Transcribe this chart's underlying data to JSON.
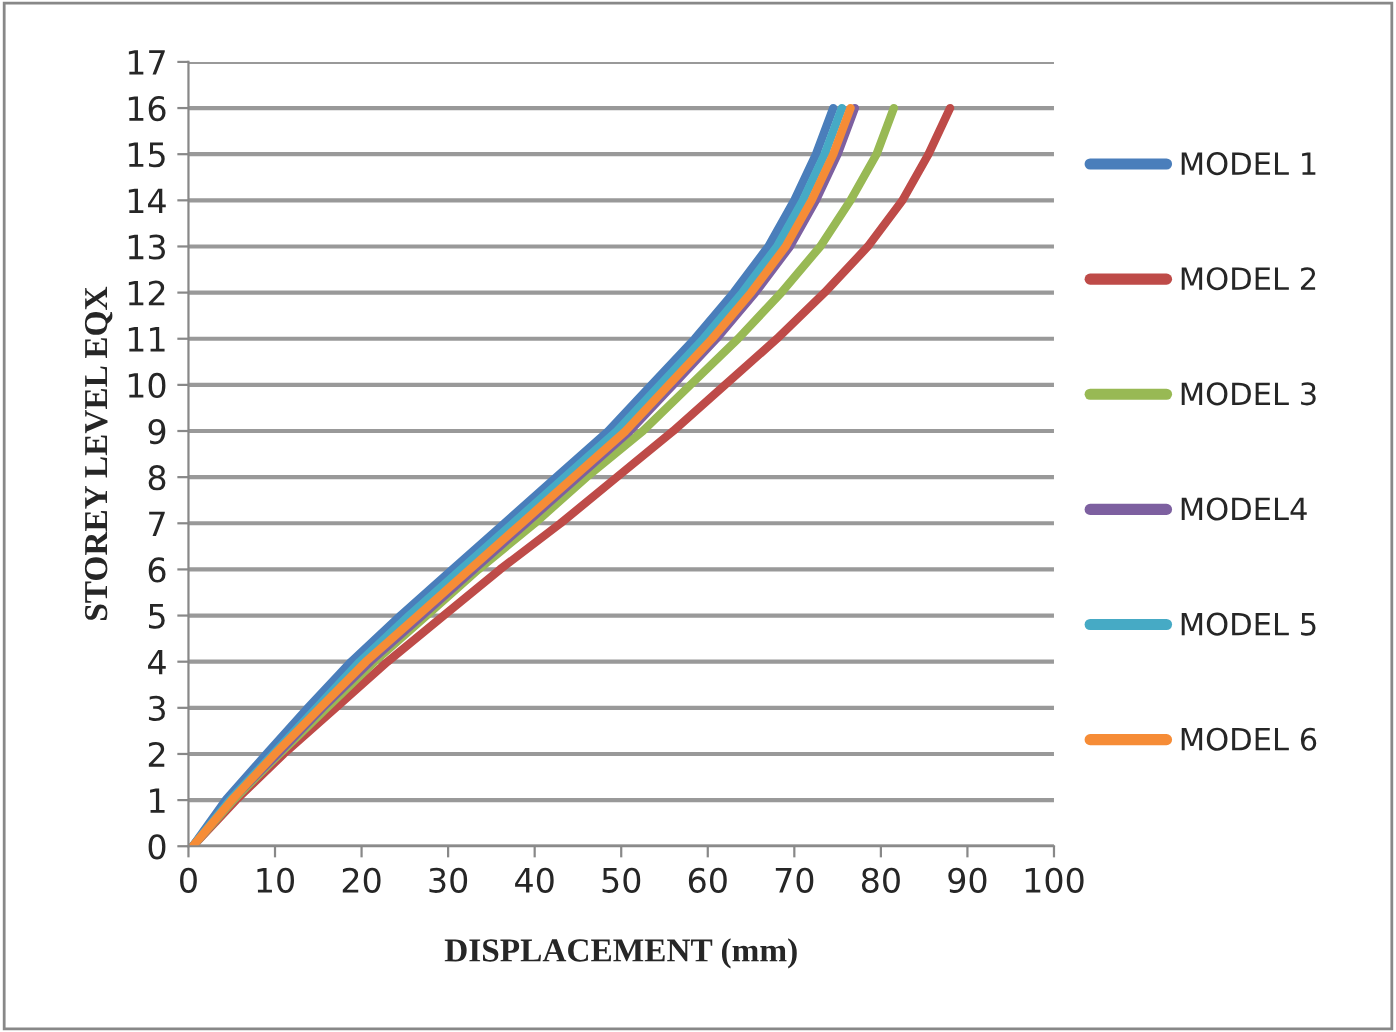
{
  "chart_data": {
    "type": "line",
    "xlabel": "DISPLACEMENT (mm)",
    "ylabel": "STOREY LEVEL EQX",
    "series": [
      {
        "name": "MODEL 1",
        "color": "#4a7ebb",
        "x": [
          0.5,
          4.3,
          9,
          13.8,
          18.8,
          24.5,
          30.5,
          36.5,
          42.5,
          48.5,
          53.5,
          58.5,
          63,
          67,
          70,
          72.5,
          74.5
        ],
        "values": [
          0,
          1,
          2,
          3,
          4,
          5,
          6,
          7,
          8,
          9,
          10,
          11,
          12,
          13,
          14,
          15,
          16
        ]
      },
      {
        "name": "MODEL 2",
        "color": "#be4b48",
        "x": [
          0.5,
          5.5,
          11,
          17,
          23,
          29.5,
          36,
          43,
          49.5,
          56,
          62,
          68,
          73.5,
          78.5,
          82.5,
          85.5,
          88
        ],
        "values": [
          0,
          1,
          2,
          3,
          4,
          5,
          6,
          7,
          8,
          9,
          10,
          11,
          12,
          13,
          14,
          15,
          16
        ]
      },
      {
        "name": "MODEL 3",
        "color": "#98b954",
        "x": [
          0.5,
          5.2,
          10.5,
          16,
          21.5,
          27.5,
          33.5,
          40,
          46,
          52.5,
          58,
          63.5,
          68.5,
          73,
          76.5,
          79.5,
          81.5
        ],
        "values": [
          0,
          1,
          2,
          3,
          4,
          5,
          6,
          7,
          8,
          9,
          10,
          11,
          12,
          13,
          14,
          15,
          16
        ]
      },
      {
        "name": "MODEL4",
        "color": "#7d60a0",
        "x": [
          0.5,
          5,
          10.3,
          15.5,
          21,
          27,
          33,
          39,
          45,
          51,
          56,
          61,
          65.5,
          69.5,
          72.5,
          75,
          77
        ],
        "values": [
          0,
          1,
          2,
          3,
          4,
          5,
          6,
          7,
          8,
          9,
          10,
          11,
          12,
          13,
          14,
          15,
          16
        ]
      },
      {
        "name": "MODEL 5",
        "color": "#46aac5",
        "x": [
          0.5,
          4.8,
          9.8,
          14.8,
          19.8,
          25.5,
          31.5,
          37.5,
          43.5,
          49.5,
          54.5,
          59.5,
          64,
          68,
          71,
          73.5,
          75.5
        ],
        "values": [
          0,
          1,
          2,
          3,
          4,
          5,
          6,
          7,
          8,
          9,
          10,
          11,
          12,
          13,
          14,
          15,
          16
        ]
      },
      {
        "name": "MODEL 6",
        "color": "#f68c36",
        "x": [
          0.5,
          5,
          10,
          15.2,
          20.5,
          26.5,
          32.5,
          38.5,
          44.5,
          50.5,
          55.5,
          60.5,
          65,
          69,
          72,
          74.5,
          76.5
        ],
        "values": [
          0,
          1,
          2,
          3,
          4,
          5,
          6,
          7,
          8,
          9,
          10,
          11,
          12,
          13,
          14,
          15,
          16
        ]
      }
    ],
    "xlim": [
      0,
      100
    ],
    "xticks": [
      0,
      10,
      20,
      30,
      40,
      50,
      60,
      70,
      80,
      90,
      100
    ],
    "ylim": [
      0,
      17
    ],
    "yticks": [
      0,
      1,
      2,
      3,
      4,
      5,
      6,
      7,
      8,
      9,
      10,
      11,
      12,
      13,
      14,
      15,
      16,
      17
    ],
    "grid": "y",
    "legend": "right",
    "marker": "none",
    "line_style": "solid"
  }
}
